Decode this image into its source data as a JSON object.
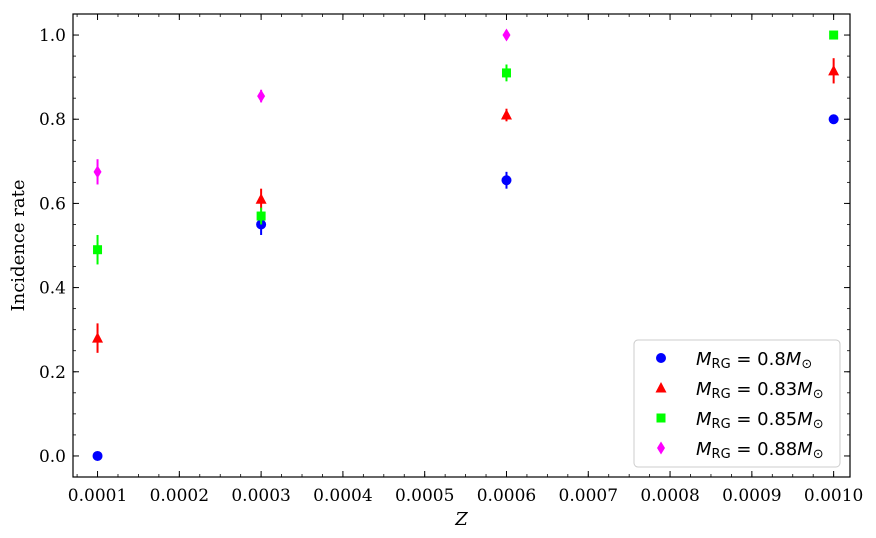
{
  "chart_data": {
    "type": "scatter",
    "xlabel": "Z",
    "ylabel": "Incidence rate",
    "xlim": [
      7e-05,
      0.00102
    ],
    "ylim": [
      -0.05,
      1.05
    ],
    "xticks": [
      "0.0001",
      "0.0002",
      "0.0003",
      "0.0004",
      "0.0005",
      "0.0006",
      "0.0007",
      "0.0008",
      "0.0009",
      "0.0010"
    ],
    "yticks": [
      "0.0",
      "0.2",
      "0.4",
      "0.6",
      "0.8",
      "1.0"
    ],
    "grid": false,
    "legend_position": "lower-right",
    "series": [
      {
        "name": "M_RG = 0.8M_⊙",
        "legend": {
          "pre": "M",
          "sub": "RG",
          "mid": " = 0.8",
          "m": "M",
          "sun": "⊙"
        },
        "marker": "circle",
        "color": "#0000ff",
        "points": [
          {
            "x": 0.0001,
            "y": 0.0,
            "err": 0.0
          },
          {
            "x": 0.0003,
            "y": 0.55,
            "err": 0.025
          },
          {
            "x": 0.0006,
            "y": 0.655,
            "err": 0.02
          },
          {
            "x": 0.001,
            "y": 0.8,
            "err": 0.01
          }
        ]
      },
      {
        "name": "M_RG = 0.83M_⊙",
        "legend": {
          "pre": "M",
          "sub": "RG",
          "mid": " = 0.83",
          "m": "M",
          "sun": "⊙"
        },
        "marker": "triangle",
        "color": "#ff0000",
        "points": [
          {
            "x": 0.0001,
            "y": 0.28,
            "err": 0.035
          },
          {
            "x": 0.0003,
            "y": 0.61,
            "err": 0.025
          },
          {
            "x": 0.0006,
            "y": 0.81,
            "err": 0.015
          },
          {
            "x": 0.001,
            "y": 0.915,
            "err": 0.03
          }
        ]
      },
      {
        "name": "M_RG = 0.85M_⊙",
        "legend": {
          "pre": "M",
          "sub": "RG",
          "mid": " = 0.85",
          "m": "M",
          "sun": "⊙"
        },
        "marker": "square",
        "color": "#00ff00",
        "points": [
          {
            "x": 0.0001,
            "y": 0.49,
            "err": 0.035
          },
          {
            "x": 0.0003,
            "y": 0.57,
            "err": 0.02
          },
          {
            "x": 0.0006,
            "y": 0.91,
            "err": 0.02
          },
          {
            "x": 0.001,
            "y": 1.0,
            "err": 0.0
          }
        ]
      },
      {
        "name": "M_RG = 0.88M_⊙",
        "legend": {
          "pre": "M",
          "sub": "RG",
          "mid": " = 0.88",
          "m": "M",
          "sun": "⊙"
        },
        "marker": "diamond",
        "color": "#ff00ff",
        "points": [
          {
            "x": 0.0001,
            "y": 0.675,
            "err": 0.03
          },
          {
            "x": 0.0003,
            "y": 0.855,
            "err": 0.015
          },
          {
            "x": 0.0006,
            "y": 1.0,
            "err": 0.0
          }
        ]
      }
    ]
  }
}
